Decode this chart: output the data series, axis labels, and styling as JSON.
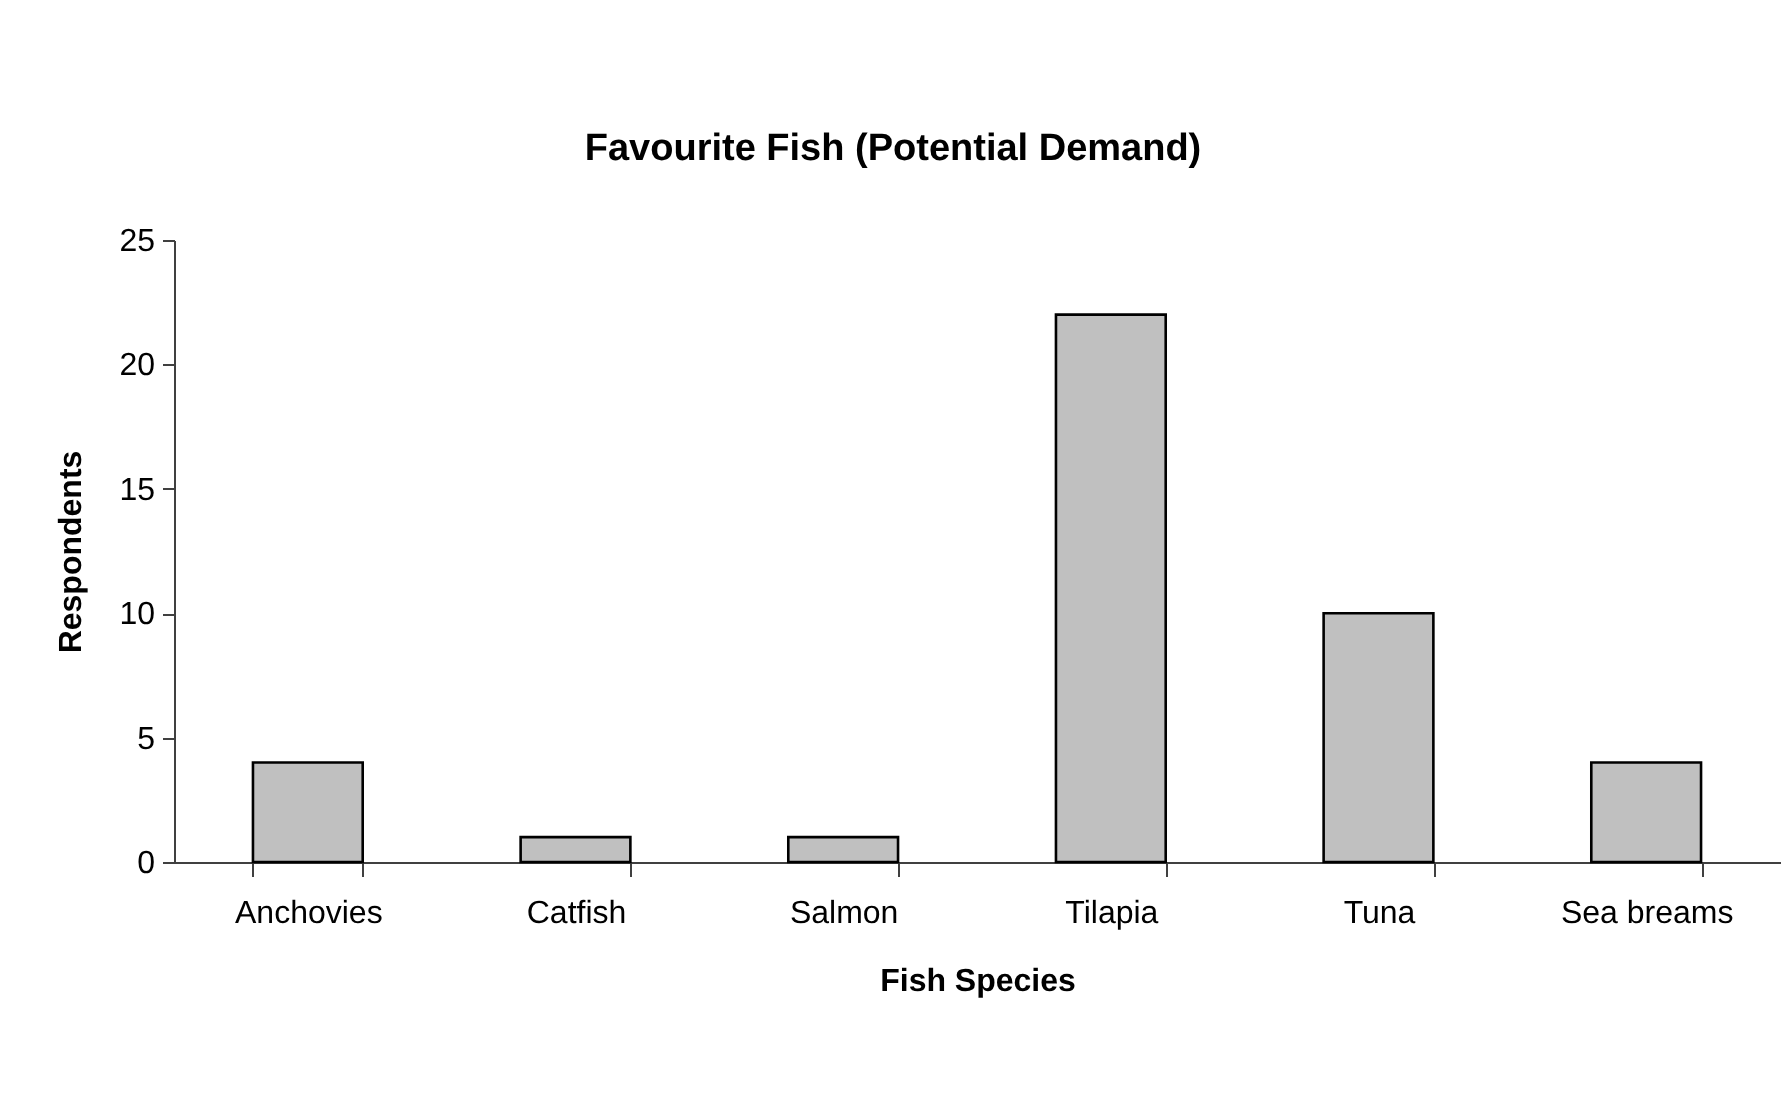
{
  "chart_data": {
    "type": "bar",
    "title": "Favourite Fish (Potential Demand)",
    "xlabel": "Fish Species",
    "ylabel": "Respondents",
    "categories": [
      "Anchovies",
      "Catfish",
      "Salmon",
      "Tilapia",
      "Tuna",
      "Sea breams"
    ],
    "values": [
      4,
      1,
      1,
      22,
      10,
      4
    ],
    "color": "#c0c0c0",
    "ylim": [
      0,
      25
    ],
    "yticks": [
      0,
      5,
      10,
      15,
      20,
      25
    ],
    "grid": false
  }
}
